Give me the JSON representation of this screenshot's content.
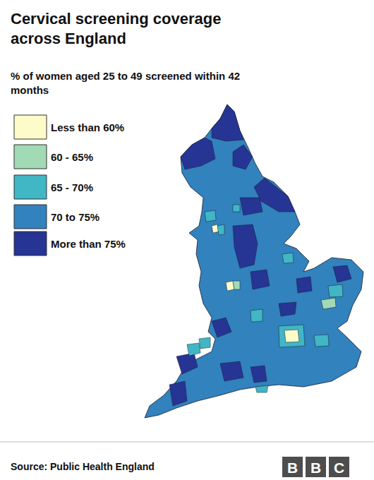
{
  "chart_data": {
    "type": "choropleth",
    "title": "Cervical screening coverage across England",
    "subtitle": "% of women aged 25 to 49 screened within 42 months",
    "classes": [
      {
        "label": "Less than 60%",
        "color": "#fdfbc9"
      },
      {
        "label": "60 - 65%",
        "color": "#a1dab4"
      },
      {
        "label": "65 - 70%",
        "color": "#41b6c4"
      },
      {
        "label": "70 to 75%",
        "color": "#3182bd"
      },
      {
        "label": "More than 75%",
        "color": "#263593"
      }
    ],
    "areas": [
      "70 to 75%",
      "More than 75%",
      "More than 75%",
      "More than 75%",
      "More than 75%",
      "More than 75%",
      "More than 75%",
      "More than 75%",
      "More than 75%",
      "More than 75%",
      "More than 75%",
      "More than 75%",
      "More than 75%",
      "More than 75%",
      "More than 75%",
      "More than 75%",
      "65 - 70%",
      "Less than 60%",
      "65 - 70%",
      "Less than 60%",
      "60 - 65%",
      "65 - 70%",
      "65 - 70%",
      "65 - 70%",
      "60 - 65%",
      "65 - 70%",
      "65 - 70%",
      "Less than 60%",
      "65 - 70%",
      "65 - 70%",
      "65 - 70%",
      "65 - 70%"
    ],
    "source": "Source: Public Health England",
    "logo": "BBC"
  }
}
